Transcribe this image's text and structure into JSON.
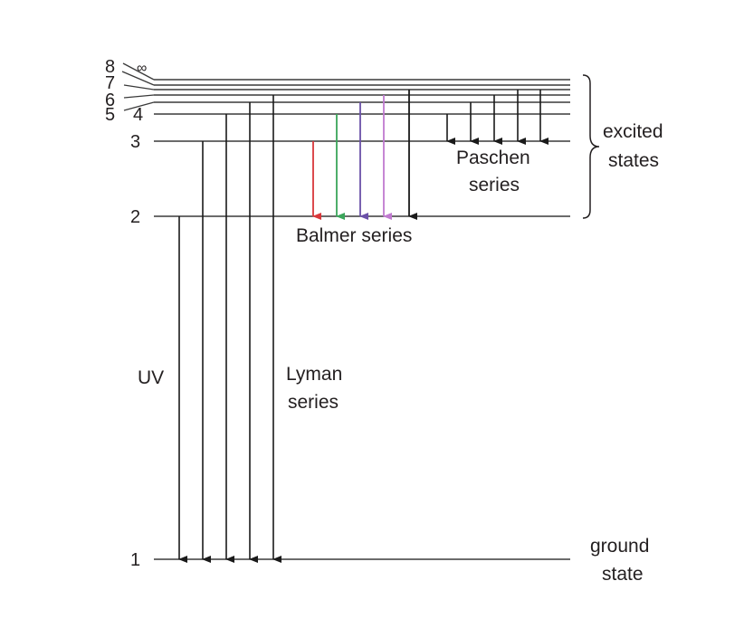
{
  "levels": {
    "n1": "1",
    "n2": "2",
    "n3": "3",
    "n4": "4",
    "n5": "5",
    "n6": "6",
    "n7": "7",
    "n8": "8",
    "infinity": "∞"
  },
  "labels": {
    "uv": "UV",
    "lyman_line1": "Lyman",
    "lyman_line2": "series",
    "balmer": "Balmer series",
    "paschen_line1": "Paschen",
    "paschen_line2": "series",
    "excited_line1": "excited",
    "excited_line2": "states",
    "ground_line1": "ground",
    "ground_line2": "state"
  },
  "colors": {
    "line": "#3a3a3a",
    "text": "#231f20",
    "balmer_red": "#d9373a",
    "balmer_green": "#3aa55a",
    "balmer_purple": "#6a50a8",
    "balmer_violet": "#c07ad0",
    "arrow_black": "#1a1a1a"
  }
}
